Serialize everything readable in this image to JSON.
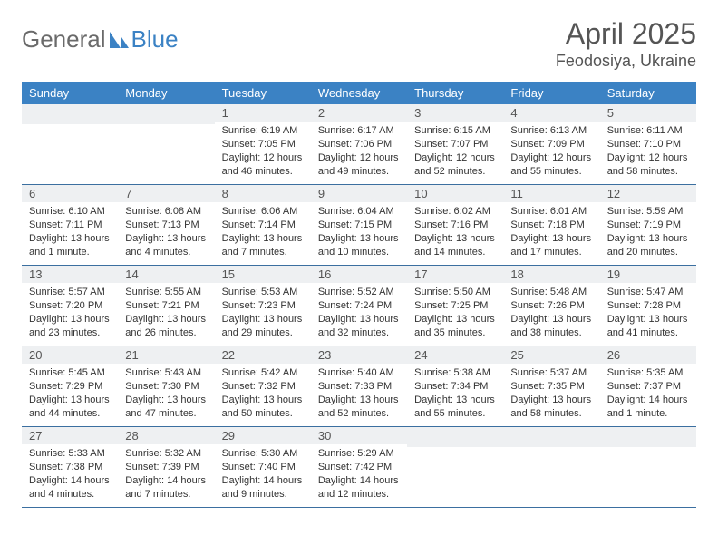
{
  "brand": {
    "part1": "General",
    "part2": "Blue"
  },
  "title": "April 2025",
  "location": "Feodosiya, Ukraine",
  "weekdays": [
    "Sunday",
    "Monday",
    "Tuesday",
    "Wednesday",
    "Thursday",
    "Friday",
    "Saturday"
  ],
  "colors": {
    "header_bg": "#3b82c4",
    "header_text": "#ffffff",
    "daynum_bg": "#eef0f2",
    "row_border": "#3b6fa0",
    "title_color": "#555555",
    "logo_gray": "#6a6a6a",
    "logo_blue": "#3b82c4",
    "page_bg": "#ffffff"
  },
  "weeks": [
    [
      {
        "n": "",
        "sr": "",
        "ss": "",
        "dl": ""
      },
      {
        "n": "",
        "sr": "",
        "ss": "",
        "dl": ""
      },
      {
        "n": "1",
        "sr": "Sunrise: 6:19 AM",
        "ss": "Sunset: 7:05 PM",
        "dl": "Daylight: 12 hours and 46 minutes."
      },
      {
        "n": "2",
        "sr": "Sunrise: 6:17 AM",
        "ss": "Sunset: 7:06 PM",
        "dl": "Daylight: 12 hours and 49 minutes."
      },
      {
        "n": "3",
        "sr": "Sunrise: 6:15 AM",
        "ss": "Sunset: 7:07 PM",
        "dl": "Daylight: 12 hours and 52 minutes."
      },
      {
        "n": "4",
        "sr": "Sunrise: 6:13 AM",
        "ss": "Sunset: 7:09 PM",
        "dl": "Daylight: 12 hours and 55 minutes."
      },
      {
        "n": "5",
        "sr": "Sunrise: 6:11 AM",
        "ss": "Sunset: 7:10 PM",
        "dl": "Daylight: 12 hours and 58 minutes."
      }
    ],
    [
      {
        "n": "6",
        "sr": "Sunrise: 6:10 AM",
        "ss": "Sunset: 7:11 PM",
        "dl": "Daylight: 13 hours and 1 minute."
      },
      {
        "n": "7",
        "sr": "Sunrise: 6:08 AM",
        "ss": "Sunset: 7:13 PM",
        "dl": "Daylight: 13 hours and 4 minutes."
      },
      {
        "n": "8",
        "sr": "Sunrise: 6:06 AM",
        "ss": "Sunset: 7:14 PM",
        "dl": "Daylight: 13 hours and 7 minutes."
      },
      {
        "n": "9",
        "sr": "Sunrise: 6:04 AM",
        "ss": "Sunset: 7:15 PM",
        "dl": "Daylight: 13 hours and 10 minutes."
      },
      {
        "n": "10",
        "sr": "Sunrise: 6:02 AM",
        "ss": "Sunset: 7:16 PM",
        "dl": "Daylight: 13 hours and 14 minutes."
      },
      {
        "n": "11",
        "sr": "Sunrise: 6:01 AM",
        "ss": "Sunset: 7:18 PM",
        "dl": "Daylight: 13 hours and 17 minutes."
      },
      {
        "n": "12",
        "sr": "Sunrise: 5:59 AM",
        "ss": "Sunset: 7:19 PM",
        "dl": "Daylight: 13 hours and 20 minutes."
      }
    ],
    [
      {
        "n": "13",
        "sr": "Sunrise: 5:57 AM",
        "ss": "Sunset: 7:20 PM",
        "dl": "Daylight: 13 hours and 23 minutes."
      },
      {
        "n": "14",
        "sr": "Sunrise: 5:55 AM",
        "ss": "Sunset: 7:21 PM",
        "dl": "Daylight: 13 hours and 26 minutes."
      },
      {
        "n": "15",
        "sr": "Sunrise: 5:53 AM",
        "ss": "Sunset: 7:23 PM",
        "dl": "Daylight: 13 hours and 29 minutes."
      },
      {
        "n": "16",
        "sr": "Sunrise: 5:52 AM",
        "ss": "Sunset: 7:24 PM",
        "dl": "Daylight: 13 hours and 32 minutes."
      },
      {
        "n": "17",
        "sr": "Sunrise: 5:50 AM",
        "ss": "Sunset: 7:25 PM",
        "dl": "Daylight: 13 hours and 35 minutes."
      },
      {
        "n": "18",
        "sr": "Sunrise: 5:48 AM",
        "ss": "Sunset: 7:26 PM",
        "dl": "Daylight: 13 hours and 38 minutes."
      },
      {
        "n": "19",
        "sr": "Sunrise: 5:47 AM",
        "ss": "Sunset: 7:28 PM",
        "dl": "Daylight: 13 hours and 41 minutes."
      }
    ],
    [
      {
        "n": "20",
        "sr": "Sunrise: 5:45 AM",
        "ss": "Sunset: 7:29 PM",
        "dl": "Daylight: 13 hours and 44 minutes."
      },
      {
        "n": "21",
        "sr": "Sunrise: 5:43 AM",
        "ss": "Sunset: 7:30 PM",
        "dl": "Daylight: 13 hours and 47 minutes."
      },
      {
        "n": "22",
        "sr": "Sunrise: 5:42 AM",
        "ss": "Sunset: 7:32 PM",
        "dl": "Daylight: 13 hours and 50 minutes."
      },
      {
        "n": "23",
        "sr": "Sunrise: 5:40 AM",
        "ss": "Sunset: 7:33 PM",
        "dl": "Daylight: 13 hours and 52 minutes."
      },
      {
        "n": "24",
        "sr": "Sunrise: 5:38 AM",
        "ss": "Sunset: 7:34 PM",
        "dl": "Daylight: 13 hours and 55 minutes."
      },
      {
        "n": "25",
        "sr": "Sunrise: 5:37 AM",
        "ss": "Sunset: 7:35 PM",
        "dl": "Daylight: 13 hours and 58 minutes."
      },
      {
        "n": "26",
        "sr": "Sunrise: 5:35 AM",
        "ss": "Sunset: 7:37 PM",
        "dl": "Daylight: 14 hours and 1 minute."
      }
    ],
    [
      {
        "n": "27",
        "sr": "Sunrise: 5:33 AM",
        "ss": "Sunset: 7:38 PM",
        "dl": "Daylight: 14 hours and 4 minutes."
      },
      {
        "n": "28",
        "sr": "Sunrise: 5:32 AM",
        "ss": "Sunset: 7:39 PM",
        "dl": "Daylight: 14 hours and 7 minutes."
      },
      {
        "n": "29",
        "sr": "Sunrise: 5:30 AM",
        "ss": "Sunset: 7:40 PM",
        "dl": "Daylight: 14 hours and 9 minutes."
      },
      {
        "n": "30",
        "sr": "Sunrise: 5:29 AM",
        "ss": "Sunset: 7:42 PM",
        "dl": "Daylight: 14 hours and 12 minutes."
      },
      {
        "n": "",
        "sr": "",
        "ss": "",
        "dl": ""
      },
      {
        "n": "",
        "sr": "",
        "ss": "",
        "dl": ""
      },
      {
        "n": "",
        "sr": "",
        "ss": "",
        "dl": ""
      }
    ]
  ]
}
